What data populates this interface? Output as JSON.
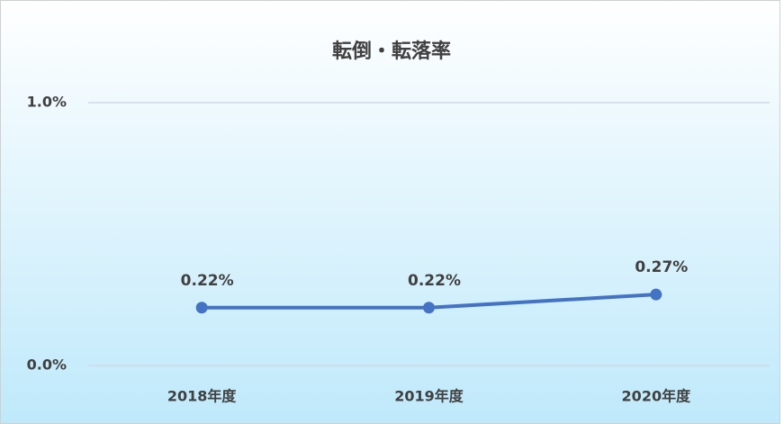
{
  "chart_data": {
    "type": "line",
    "title": "転倒・転落率",
    "categories": [
      "2018年度",
      "2019年度",
      "2020年度"
    ],
    "series": [
      {
        "name": "転倒・転落率",
        "color": "#4472c4",
        "values": [
          0.22,
          0.22,
          0.27
        ],
        "value_labels": [
          "0.22%",
          "0.22%",
          "0.27%"
        ]
      }
    ],
    "ylim": [
      0,
      1
    ],
    "yticks": [
      {
        "value": 0,
        "label": "0.0%"
      },
      {
        "value": 1,
        "label": "1.0%"
      }
    ],
    "grid": true
  }
}
